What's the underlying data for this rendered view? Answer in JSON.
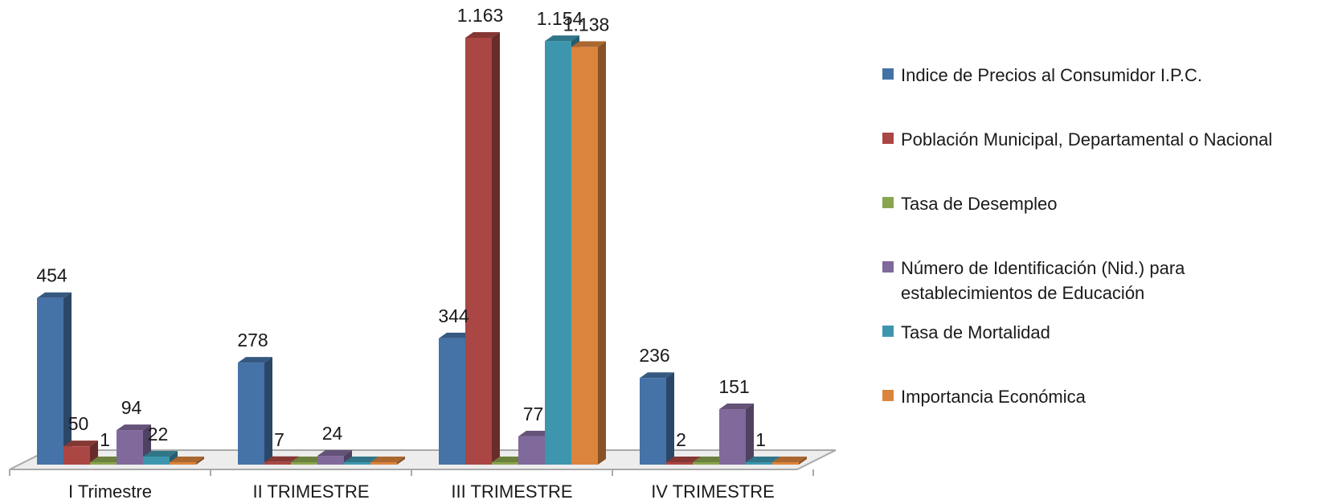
{
  "chart_data": {
    "type": "bar",
    "style": "3d-clustered",
    "categories": [
      "I Trimestre",
      "II TRIMESTRE",
      "III TRIMESTRE",
      "IV TRIMESTRE"
    ],
    "series": [
      {
        "name": "Indice de Precios al Consumidor I.P.C.",
        "color": "#4572A7",
        "values": [
          454,
          278,
          344,
          236
        ],
        "labels": [
          "454",
          "278",
          "344",
          "236"
        ]
      },
      {
        "name": "Población Municipal, Departamental o Nacional",
        "color": "#AA4643",
        "values": [
          50,
          7,
          1163,
          2
        ],
        "labels": [
          "50",
          "7",
          "1.163",
          "2"
        ]
      },
      {
        "name": "Tasa de Desempleo",
        "color": "#89A54E",
        "values": [
          1,
          0,
          0,
          0
        ],
        "labels": [
          "1",
          "",
          "",
          ""
        ]
      },
      {
        "name": "Número de Identificación (Nid.) para establecimientos de Educación",
        "color": "#80699B",
        "values": [
          94,
          24,
          77,
          151
        ],
        "labels": [
          "94",
          "24",
          "77",
          "151"
        ]
      },
      {
        "name": "Tasa de Mortalidad",
        "color": "#3D96AE",
        "values": [
          22,
          0,
          1154,
          1
        ],
        "labels": [
          "22",
          "",
          "1.154",
          "1"
        ]
      },
      {
        "name": "Importancia Económica",
        "color": "#DB843D",
        "values": [
          0,
          0,
          1138,
          0
        ],
        "labels": [
          "",
          "",
          "1.138",
          ""
        ]
      }
    ],
    "ylim": [
      0,
      1163
    ],
    "legend_position": "right",
    "grid": false
  }
}
